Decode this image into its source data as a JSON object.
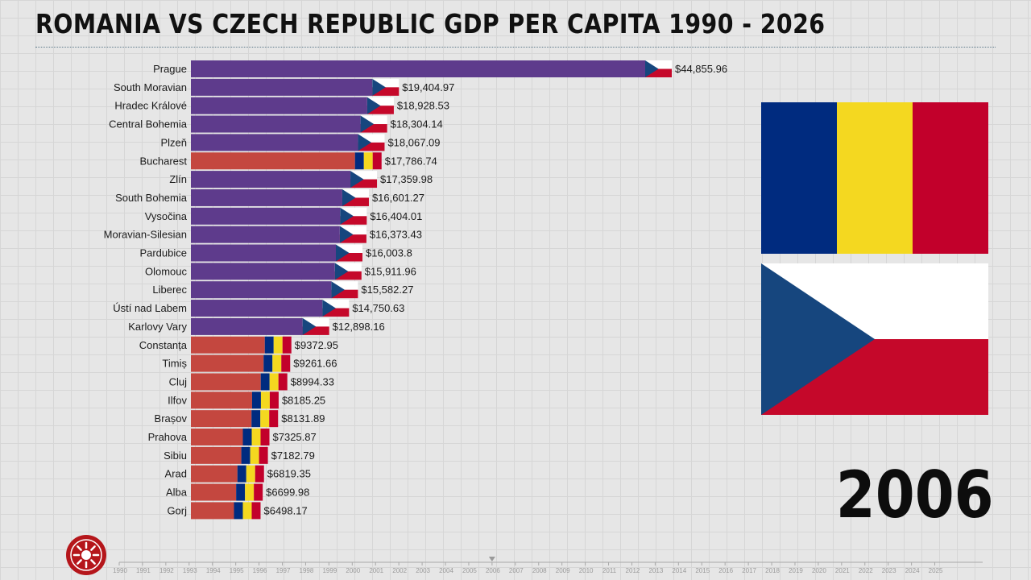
{
  "title": "ROMANIA VS CZECH REPUBLIC GDP PER CAPITA 1990 - 2026",
  "year": "2006",
  "colors": {
    "czech_bar": "#5e3b8c",
    "romania_bar": "#c4473f",
    "ro_blue": "#002b7f",
    "ro_yellow": "#f4d820",
    "ro_red": "#c2002b",
    "cz_blue": "#16467e",
    "cz_white": "#ffffff",
    "cz_red": "#c5082a",
    "logo": "#b5161b"
  },
  "chart_data": {
    "type": "bar",
    "orientation": "horizontal",
    "title": "ROMANIA VS CZECH REPUBLIC GDP PER CAPITA 1990 - 2026",
    "year": "2006",
    "categories": [
      "Prague",
      "South Moravian",
      "Hradec Králové",
      "Central Bohemia",
      "Plzeň",
      "Bucharest",
      "Zlín",
      "South Bohemia",
      "Vysočina",
      "Moravian-Silesian",
      "Pardubice",
      "Olomouc",
      "Liberec",
      "Ústí nad Labem",
      "Karlovy Vary",
      "Constanța",
      "Timiș",
      "Cluj",
      "Ilfov",
      "Brașov",
      "Prahova",
      "Sibiu",
      "Arad",
      "Alba",
      "Gorj"
    ],
    "values": [
      44855.96,
      19404.97,
      18928.53,
      18304.14,
      18067.09,
      17786.74,
      17359.98,
      16601.27,
      16404.01,
      16373.43,
      16003.8,
      15911.96,
      15582.27,
      14750.63,
      12898.16,
      9372.95,
      9261.66,
      8994.33,
      8185.25,
      8131.89,
      7325.87,
      7182.79,
      6819.35,
      6699.98,
      6498.17
    ],
    "value_labels": [
      "$44,855.96",
      "$19,404.97",
      "$18,928.53",
      "$18,304.14",
      "$18,067.09",
      "$17,786.74",
      "$17,359.98",
      "$16,601.27",
      "$16,404.01",
      "$16,373.43",
      "$16,003.8",
      "$15,911.96",
      "$15,582.27",
      "$14,750.63",
      "$12,898.16",
      "$9372.95",
      "$9261.66",
      "$8994.33",
      "$8185.25",
      "$8131.89",
      "$7325.87",
      "$7182.79",
      "$6819.35",
      "$6699.98",
      "$6498.17"
    ],
    "countries": [
      "CZ",
      "CZ",
      "CZ",
      "CZ",
      "CZ",
      "RO",
      "CZ",
      "CZ",
      "CZ",
      "CZ",
      "CZ",
      "CZ",
      "CZ",
      "CZ",
      "CZ",
      "RO",
      "RO",
      "RO",
      "RO",
      "RO",
      "RO",
      "RO",
      "RO",
      "RO",
      "RO"
    ],
    "timeline_ticks": [
      "1990",
      "1991",
      "1992",
      "1993",
      "1994",
      "1995",
      "1996",
      "1997",
      "1998",
      "1999",
      "2000",
      "2001",
      "2002",
      "2003",
      "2004",
      "2005",
      "2006",
      "2007",
      "2008",
      "2009",
      "2010",
      "2011",
      "2012",
      "2013",
      "2014",
      "2015",
      "2016",
      "2017",
      "2018",
      "2019",
      "2020",
      "2021",
      "2022",
      "2023",
      "2024",
      "2025"
    ],
    "timeline_current": "2006"
  }
}
